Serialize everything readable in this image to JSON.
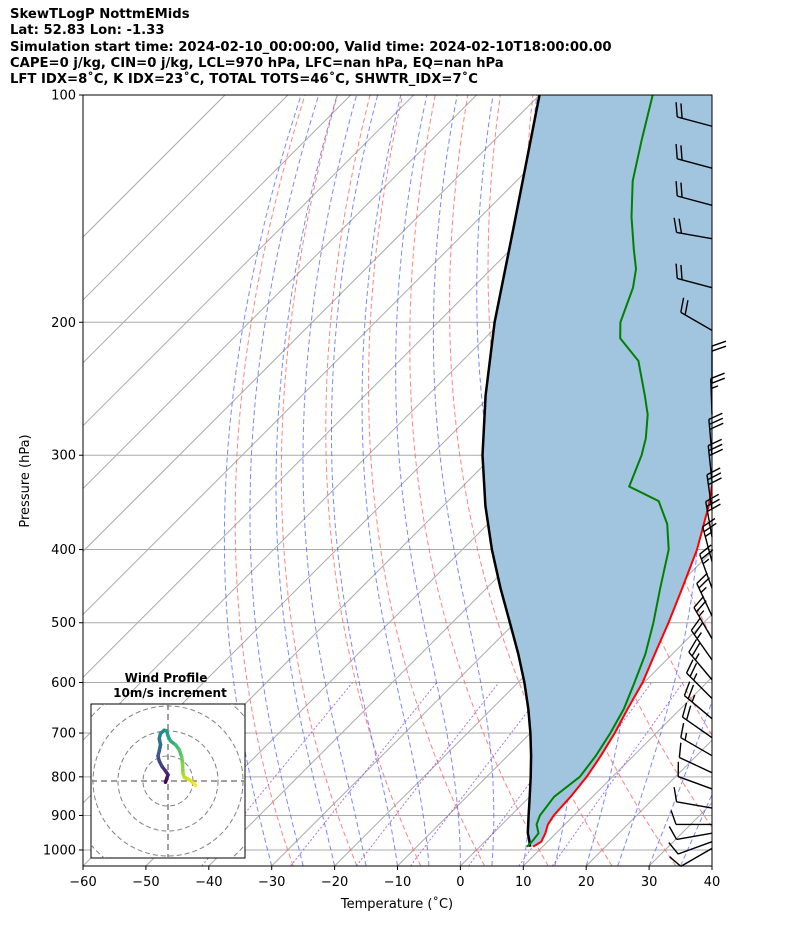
{
  "header": {
    "line1": "SkewTLogP NottmEMids",
    "line2": "Lat: 52.83   Lon: -1.33",
    "line3": "Simulation start time: 2024-02-10_00:00:00, Valid time: 2024-02-10T18:00:00.00",
    "line4": "CAPE=0 j/kg, CIN=0 j/kg, LCL=970 hPa, LFC=nan hPa, EQ=nan hPa",
    "line5": "LFT IDX=8˚C, K IDX=23˚C, TOTAL TOTS=46˚C, SHWTR_IDX=7˚C"
  },
  "chart_data": {
    "type": "skewt",
    "xlabel": "Temperature (˚C)",
    "ylabel": "Pressure (hPa)",
    "xlim": [
      -60,
      40
    ],
    "ylim": [
      1050,
      100
    ],
    "x_ticks": [
      "−60",
      "−50",
      "−40",
      "−30",
      "−20",
      "−10",
      "0",
      "10",
      "20",
      "30",
      "40"
    ],
    "y_ticks": [
      "100",
      "200",
      "300",
      "400",
      "500",
      "600",
      "700",
      "800",
      "900",
      "1000"
    ],
    "grid": true,
    "colors": {
      "temperature": "#ff0000",
      "dewpoint": "#008000",
      "parcel": "#000000",
      "cape_fill": "#a1c5de",
      "dry_adiabat": "#ff5a5a",
      "moist_adiabat": "#4f5fff",
      "mixing_ratio": "#9b4fd6",
      "isotherm": "#aaaaaa"
    },
    "temperature_profile": [
      {
        "p": 990,
        "t": 8.5
      },
      {
        "p": 975,
        "t": 9.0
      },
      {
        "p": 950,
        "t": 8.3
      },
      {
        "p": 925,
        "t": 7.3
      },
      {
        "p": 900,
        "t": 6.8
      },
      {
        "p": 850,
        "t": 6.5
      },
      {
        "p": 800,
        "t": 5.9
      },
      {
        "p": 750,
        "t": 4.8
      },
      {
        "p": 700,
        "t": 3.4
      },
      {
        "p": 650,
        "t": 1.6
      },
      {
        "p": 600,
        "t": -0.2
      },
      {
        "p": 550,
        "t": -2.8
      },
      {
        "p": 500,
        "t": -5.6
      },
      {
        "p": 450,
        "t": -8.9
      },
      {
        "p": 400,
        "t": -12.7
      },
      {
        "p": 350,
        "t": -17.8
      },
      {
        "p": 300,
        "t": -24.5
      },
      {
        "p": 285,
        "t": -27.0
      },
      {
        "p": 270,
        "t": -29.0
      },
      {
        "p": 250,
        "t": -29.5
      },
      {
        "p": 230,
        "t": -31.0
      },
      {
        "p": 210,
        "t": -33.5
      },
      {
        "p": 200,
        "t": -35.0
      },
      {
        "p": 175,
        "t": -39.5
      },
      {
        "p": 150,
        "t": -46.0
      },
      {
        "p": 130,
        "t": -52.0
      },
      {
        "p": 115,
        "t": -57.0
      },
      {
        "p": 100,
        "t": -62.0
      }
    ],
    "dewpoint_profile": [
      {
        "p": 990,
        "t": 7.5
      },
      {
        "p": 975,
        "t": 7.5
      },
      {
        "p": 950,
        "t": 7.2
      },
      {
        "p": 925,
        "t": 5.5
      },
      {
        "p": 900,
        "t": 4.6
      },
      {
        "p": 850,
        "t": 3.9
      },
      {
        "p": 800,
        "t": 4.8
      },
      {
        "p": 750,
        "t": 4.0
      },
      {
        "p": 700,
        "t": 2.7
      },
      {
        "p": 650,
        "t": 1.0
      },
      {
        "p": 600,
        "t": -1.5
      },
      {
        "p": 550,
        "t": -4.3
      },
      {
        "p": 500,
        "t": -8.0
      },
      {
        "p": 450,
        "t": -12.4
      },
      {
        "p": 400,
        "t": -17.2
      },
      {
        "p": 370,
        "t": -21.5
      },
      {
        "p": 345,
        "t": -26.5
      },
      {
        "p": 330,
        "t": -33.5
      },
      {
        "p": 300,
        "t": -36.5
      },
      {
        "p": 285,
        "t": -38.5
      },
      {
        "p": 265,
        "t": -42.0
      },
      {
        "p": 250,
        "t": -45.5
      },
      {
        "p": 225,
        "t": -52.0
      },
      {
        "p": 210,
        "t": -58.5
      },
      {
        "p": 200,
        "t": -61.0
      },
      {
        "p": 180,
        "t": -64.5
      },
      {
        "p": 170,
        "t": -67.0
      },
      {
        "p": 160,
        "t": -70.5
      },
      {
        "p": 145,
        "t": -76.0
      },
      {
        "p": 130,
        "t": -81.5
      },
      {
        "p": 115,
        "t": -86.5
      },
      {
        "p": 100,
        "t": -92.0
      }
    ],
    "parcel_profile": [
      {
        "p": 990,
        "t": 8.0
      },
      {
        "p": 970,
        "t": 6.8
      },
      {
        "p": 950,
        "t": 5.5
      },
      {
        "p": 900,
        "t": 2.8
      },
      {
        "p": 850,
        "t": 0.0
      },
      {
        "p": 800,
        "t": -3.0
      },
      {
        "p": 750,
        "t": -6.3
      },
      {
        "p": 700,
        "t": -10.0
      },
      {
        "p": 650,
        "t": -14.2
      },
      {
        "p": 600,
        "t": -19.0
      },
      {
        "p": 550,
        "t": -24.5
      },
      {
        "p": 500,
        "t": -30.8
      },
      {
        "p": 450,
        "t": -37.8
      },
      {
        "p": 400,
        "t": -45.3
      },
      {
        "p": 350,
        "t": -53.3
      },
      {
        "p": 300,
        "t": -61.8
      },
      {
        "p": 250,
        "t": -70.8
      },
      {
        "p": 200,
        "t": -81.0
      },
      {
        "p": 150,
        "t": -93.0
      },
      {
        "p": 100,
        "t": -110.0
      }
    ],
    "wind_barbs": [
      {
        "p": 995,
        "speed_kt": 10,
        "dir_deg": 240
      },
      {
        "p": 975,
        "speed_kt": 10,
        "dir_deg": 250
      },
      {
        "p": 950,
        "speed_kt": 10,
        "dir_deg": 260
      },
      {
        "p": 925,
        "speed_kt": 10,
        "dir_deg": 270
      },
      {
        "p": 880,
        "speed_kt": 10,
        "dir_deg": 280
      },
      {
        "p": 830,
        "speed_kt": 10,
        "dir_deg": 290
      },
      {
        "p": 790,
        "speed_kt": 10,
        "dir_deg": 295
      },
      {
        "p": 750,
        "speed_kt": 15,
        "dir_deg": 300
      },
      {
        "p": 710,
        "speed_kt": 20,
        "dir_deg": 305
      },
      {
        "p": 670,
        "speed_kt": 25,
        "dir_deg": 310
      },
      {
        "p": 630,
        "speed_kt": 25,
        "dir_deg": 315
      },
      {
        "p": 595,
        "speed_kt": 25,
        "dir_deg": 320
      },
      {
        "p": 560,
        "speed_kt": 25,
        "dir_deg": 325
      },
      {
        "p": 525,
        "speed_kt": 25,
        "dir_deg": 330
      },
      {
        "p": 490,
        "speed_kt": 25,
        "dir_deg": 335
      },
      {
        "p": 450,
        "speed_kt": 25,
        "dir_deg": 340
      },
      {
        "p": 415,
        "speed_kt": 25,
        "dir_deg": 345
      },
      {
        "p": 385,
        "speed_kt": 30,
        "dir_deg": 350
      },
      {
        "p": 355,
        "speed_kt": 30,
        "dir_deg": 352
      },
      {
        "p": 325,
        "speed_kt": 30,
        "dir_deg": 354
      },
      {
        "p": 300,
        "speed_kt": 30,
        "dir_deg": 355
      },
      {
        "p": 265,
        "speed_kt": 25,
        "dir_deg": 358
      },
      {
        "p": 240,
        "speed_kt": 20,
        "dir_deg": 0
      },
      {
        "p": 205,
        "speed_kt": 20,
        "dir_deg": 300
      },
      {
        "p": 180,
        "speed_kt": 20,
        "dir_deg": 285
      },
      {
        "p": 155,
        "speed_kt": 20,
        "dir_deg": 280
      },
      {
        "p": 140,
        "speed_kt": 20,
        "dir_deg": 285
      },
      {
        "p": 125,
        "speed_kt": 20,
        "dir_deg": 285
      },
      {
        "p": 110,
        "speed_kt": 20,
        "dir_deg": 285
      }
    ],
    "wind_profile_inset": {
      "title": "Wind Profile",
      "subtitle": "10m/s increment",
      "ring_increment_ms": 10,
      "hodograph": [
        {
          "u": -1.0,
          "v": -0.5
        },
        {
          "u": -0.5,
          "v": 1.0
        },
        {
          "u": 0.0,
          "v": 2.5
        },
        {
          "u": -1.0,
          "v": 4.0
        },
        {
          "u": -2.5,
          "v": 6.0
        },
        {
          "u": -3.5,
          "v": 8.0
        },
        {
          "u": -4.0,
          "v": 10.0
        },
        {
          "u": -3.5,
          "v": 12.0
        },
        {
          "u": -3.0,
          "v": 14.5
        },
        {
          "u": -3.5,
          "v": 17.0
        },
        {
          "u": -3.0,
          "v": 19.0
        },
        {
          "u": -1.5,
          "v": 20.3
        },
        {
          "u": -0.5,
          "v": 20.0
        },
        {
          "u": 0.0,
          "v": 18.0
        },
        {
          "u": 1.0,
          "v": 16.0
        },
        {
          "u": 3.0,
          "v": 14.5
        },
        {
          "u": 4.5,
          "v": 12.5
        },
        {
          "u": 5.5,
          "v": 9.5
        },
        {
          "u": 5.8,
          "v": 7.0
        },
        {
          "u": 6.0,
          "v": 3.0
        },
        {
          "u": 6.5,
          "v": 1.5
        },
        {
          "u": 8.5,
          "v": 0.5
        },
        {
          "u": 10.5,
          "v": -1.0
        },
        {
          "u": 11.0,
          "v": -1.8
        }
      ]
    }
  }
}
